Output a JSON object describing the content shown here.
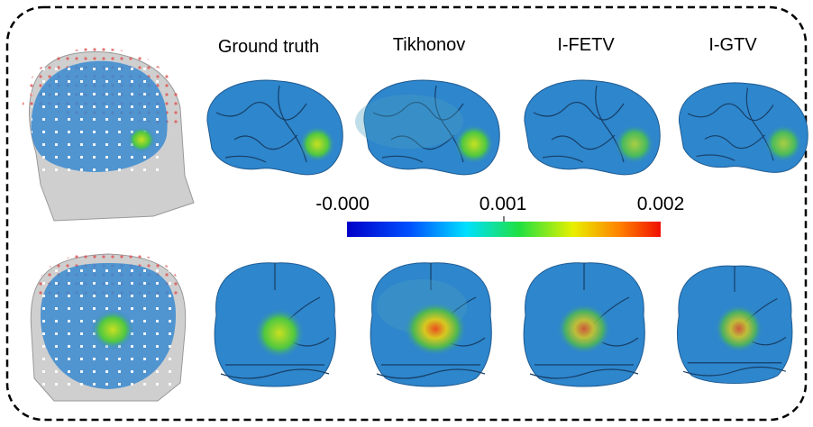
{
  "columns": [
    "Ground truth",
    "Tikhonov",
    "I-FETV",
    "I-GTV"
  ],
  "colorbar": {
    "ticks": [
      "-0.000",
      "0.001",
      "0.002"
    ]
  }
}
